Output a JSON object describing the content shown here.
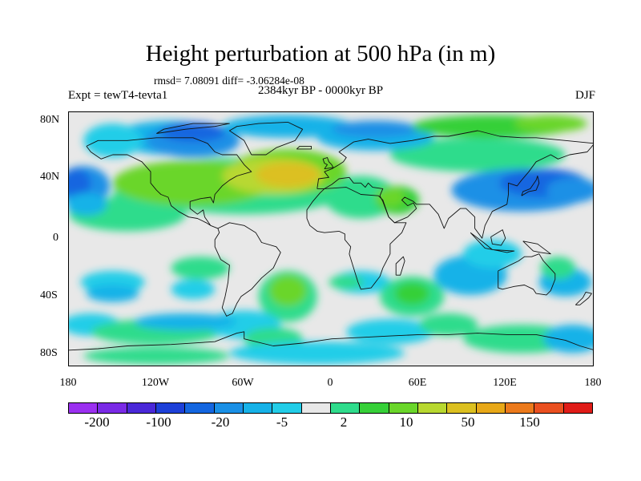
{
  "header": {
    "title": "Height perturbation at 500 hPa (in m)",
    "stats": "rmsd= 7.08091 diff= -3.06284e-08",
    "period": "2384kyr BP - 0000kyr BP",
    "experiment": "Expt = tewT4-tevta1",
    "season": "DJF"
  },
  "axes": {
    "y_ticks": [
      "80N",
      "40N",
      "0",
      "40S",
      "80S"
    ],
    "x_ticks": [
      "180",
      "120W",
      "60W",
      "0",
      "60E",
      "120E",
      "180"
    ]
  },
  "colorbar": {
    "labels": [
      "-200",
      "-100",
      "-20",
      "-5",
      "2",
      "10",
      "50",
      "150"
    ],
    "colors": [
      "#9b30f0",
      "#7a2ae6",
      "#4a28d8",
      "#1d40d8",
      "#1466e0",
      "#1a90e6",
      "#16b2e8",
      "#22cde8",
      "#e8e8e8",
      "#2fdc8c",
      "#36d038",
      "#6ad62a",
      "#b8d830",
      "#dcc020",
      "#e8a818",
      "#ec7a1c",
      "#ea5020",
      "#e01c18"
    ]
  },
  "map": {
    "projection": "cylindrical equidistant",
    "lon_range": [
      -180,
      180
    ],
    "lat_range": [
      -90,
      90
    ],
    "background_color": "#e8e8e8"
  }
}
